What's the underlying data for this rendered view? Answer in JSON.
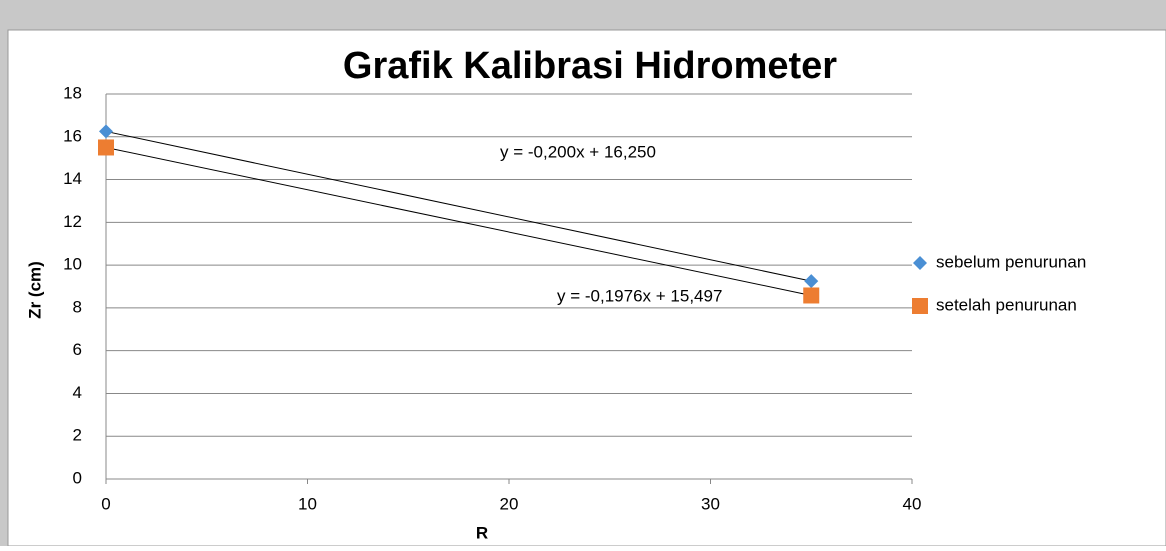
{
  "chart_data": {
    "type": "scatter",
    "title": "Grafik Kalibrasi Hidrometer",
    "x_label": "R",
    "y_label": "Zr (cm)",
    "series": [
      {
        "name": "sebelum penurunan",
        "color": "#4a8fd4",
        "marker": "diamond",
        "x": [
          0,
          35
        ],
        "values": [
          16.25,
          9.25
        ],
        "trendline": true
      },
      {
        "name": "setelah penurunan",
        "color": "#ed7d31",
        "marker": "square",
        "x": [
          0,
          35
        ],
        "values": [
          15.5,
          8.58
        ],
        "trendline": true
      }
    ],
    "annotations": [
      "y = -0,200x + 16,250",
      "y = -0,1976x + 15,497"
    ],
    "xlim": [
      0,
      40
    ],
    "xticks": [
      0,
      10,
      20,
      30,
      40
    ],
    "ylim": [
      0,
      18
    ],
    "yticks": [
      0,
      2,
      4,
      6,
      8,
      10,
      12,
      14,
      16,
      18
    ],
    "grid": true,
    "legend": "right"
  }
}
